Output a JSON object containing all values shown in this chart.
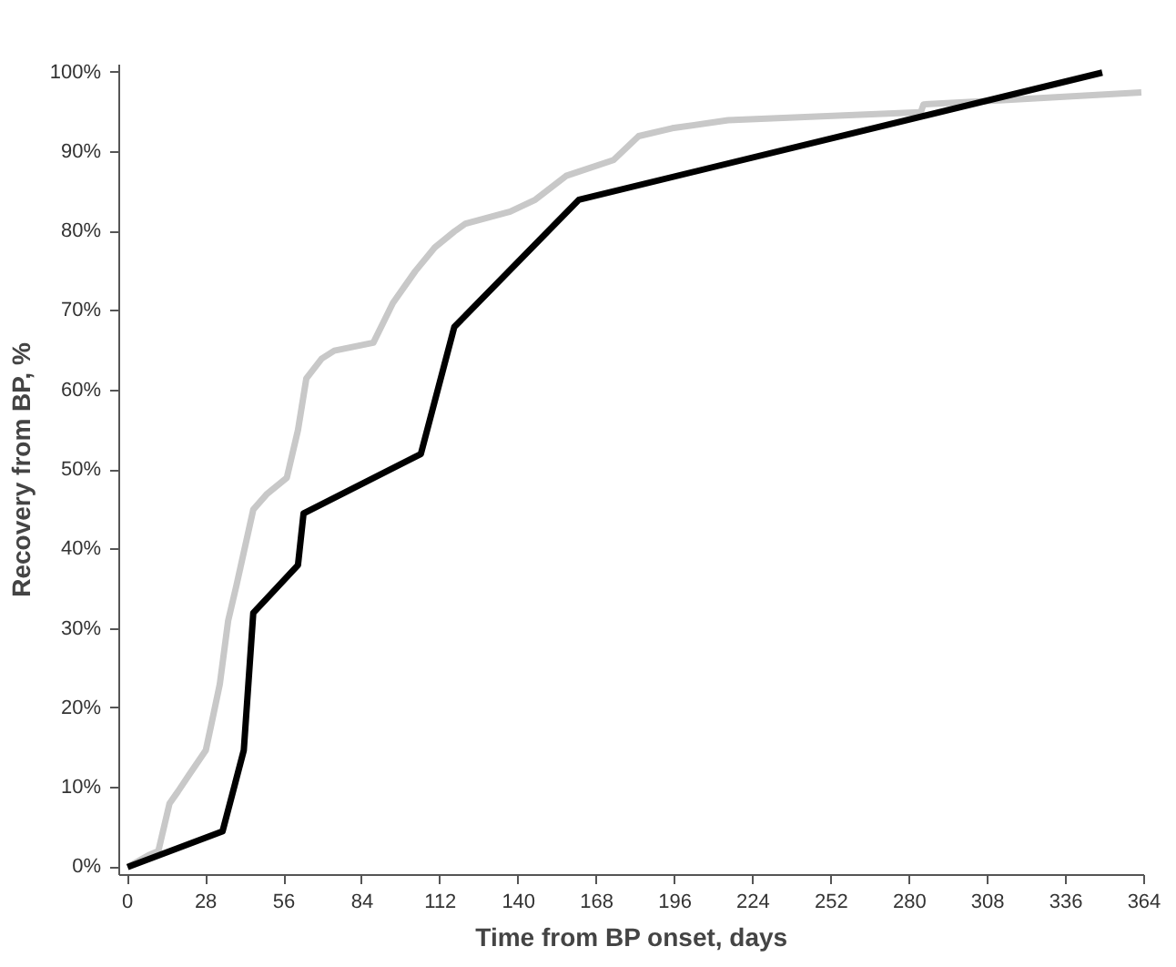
{
  "chart_data": {
    "type": "line",
    "xlabel": "Time from BP onset, days",
    "ylabel": "Recovery from BP, %",
    "xlim": [
      -3,
      364
    ],
    "ylim": [
      -1,
      101
    ],
    "xticks": [
      0,
      28,
      56,
      84,
      112,
      140,
      168,
      196,
      224,
      252,
      280,
      308,
      336,
      364
    ],
    "yticks": [
      {
        "value": 0,
        "label": "0%"
      },
      {
        "value": 10,
        "label": "10%"
      },
      {
        "value": 20,
        "label": "20%"
      },
      {
        "value": 30,
        "label": "30%"
      },
      {
        "value": 40,
        "label": "40%"
      },
      {
        "value": 50,
        "label": "50%"
      },
      {
        "value": 60,
        "label": "60%"
      },
      {
        "value": 70,
        "label": "70%"
      },
      {
        "value": 80,
        "label": "80%"
      },
      {
        "value": 90,
        "label": "90%"
      },
      {
        "value": 100,
        "label": "100%"
      }
    ],
    "grid": false,
    "line_style": "solid",
    "series": [
      {
        "color": "#c8c8c8",
        "x": [
          0,
          7.5,
          11,
          15,
          18,
          22,
          28,
          30,
          33,
          36,
          39,
          45,
          50,
          57,
          61,
          64,
          69.5,
          74,
          88,
          95,
          103,
          110,
          117,
          121,
          137,
          146,
          157,
          174,
          183,
          195,
          215,
          284,
          285,
          312,
          363
        ],
        "values": [
          0,
          1.5,
          2,
          8,
          9.5,
          11.6,
          14.7,
          18,
          23,
          31,
          35.5,
          45,
          47,
          49,
          55,
          61.5,
          64,
          65,
          66,
          71,
          75,
          78,
          80,
          81,
          82.5,
          84,
          87,
          89,
          92,
          93,
          94,
          95,
          96,
          96.5,
          97.5
        ]
      },
      {
        "color": "#000000",
        "x": [
          0,
          34,
          41.6,
          45,
          61,
          63,
          105,
          117,
          161.6,
          349
        ],
        "values": [
          0,
          4.5,
          14.7,
          32,
          38,
          44.5,
          52,
          68,
          84,
          100
        ]
      }
    ]
  }
}
